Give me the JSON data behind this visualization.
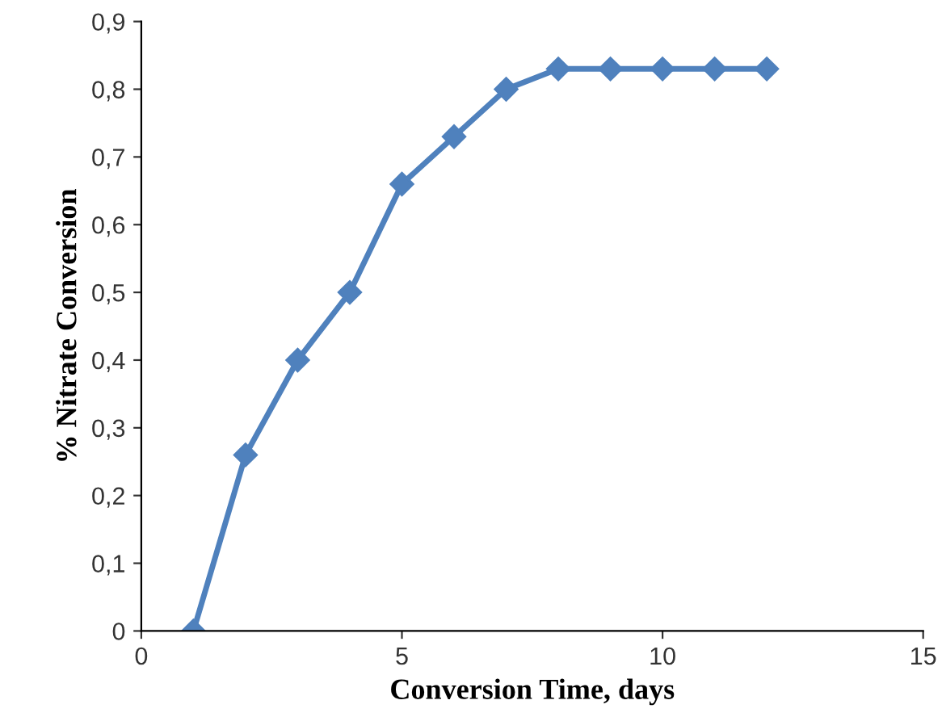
{
  "chart_data": {
    "type": "line",
    "xlabel": "Conversion Time, days",
    "ylabel": "% Nitrate Conversion",
    "x": [
      1,
      2,
      3,
      4,
      5,
      6,
      7,
      8,
      9,
      10,
      11,
      12
    ],
    "series": [
      {
        "color": "#4f81bd",
        "values": [
          0,
          0.26,
          0.4,
          0.5,
          0.66,
          0.73,
          0.8,
          0.83,
          0.83,
          0.83,
          0.83,
          0.83
        ]
      }
    ],
    "xlim": [
      0,
      15
    ],
    "xticks": [
      0,
      5,
      10,
      15
    ],
    "ylim": [
      0,
      0.9
    ],
    "yticks": [
      0,
      {
        "value": 0.1,
        "label": "0,1"
      },
      {
        "value": 0.2,
        "label": "0,2"
      },
      {
        "value": 0.3,
        "label": "0,3"
      },
      {
        "value": 0.4,
        "label": "0,4"
      },
      {
        "value": 0.5,
        "label": "0,5"
      },
      {
        "value": 0.6,
        "label": "0,6"
      },
      {
        "value": 0.7,
        "label": "0,7"
      },
      {
        "value": 0.8,
        "label": "0,8"
      },
      {
        "value": 0.9,
        "label": "0,9"
      }
    ],
    "marker": "diamond",
    "line_style": "solid",
    "grid": false,
    "legend": false
  }
}
